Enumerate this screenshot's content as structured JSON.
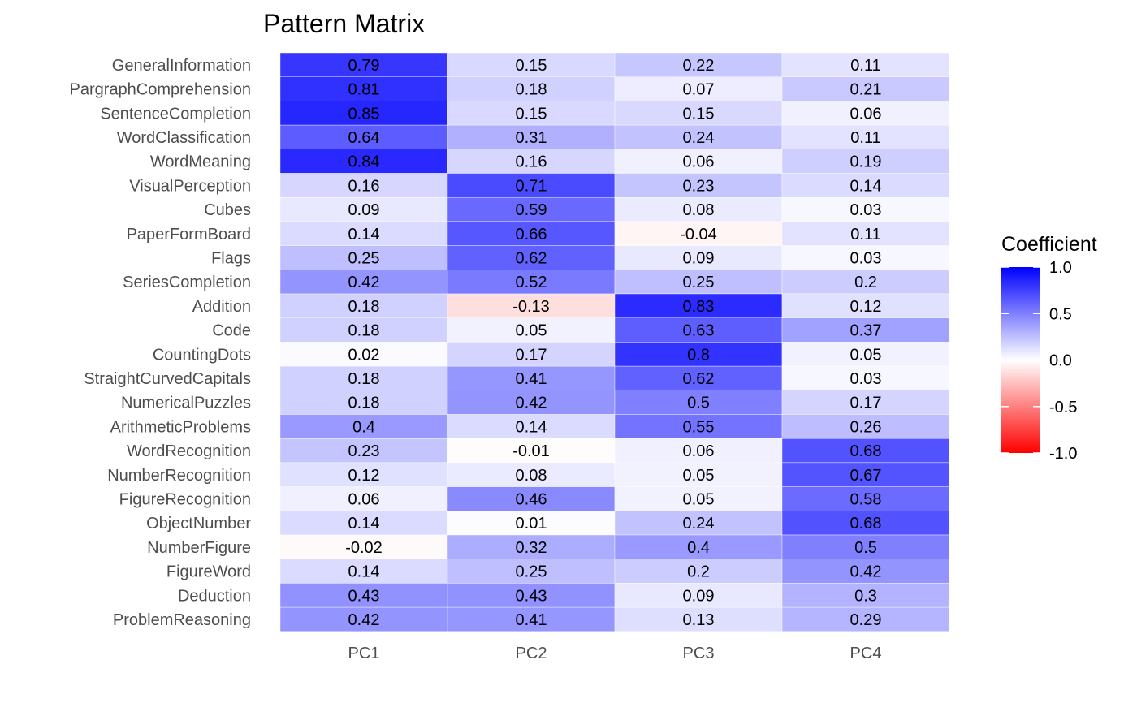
{
  "chart_data": {
    "type": "heatmap",
    "title": "Pattern Matrix",
    "xlabel": "",
    "ylabel": "",
    "columns": [
      "PC1",
      "PC2",
      "PC3",
      "PC4"
    ],
    "rows": [
      "GeneralInformation",
      "PargraphComprehension",
      "SentenceCompletion",
      "WordClassification",
      "WordMeaning",
      "VisualPerception",
      "Cubes",
      "PaperFormBoard",
      "Flags",
      "SeriesCompletion",
      "Addition",
      "Code",
      "CountingDots",
      "StraightCurvedCapitals",
      "NumericalPuzzles",
      "ArithmeticProblems",
      "WordRecognition",
      "NumberRecognition",
      "FigureRecognition",
      "ObjectNumber",
      "NumberFigure",
      "FigureWord",
      "Deduction",
      "ProblemReasoning"
    ],
    "values": [
      [
        0.79,
        0.15,
        0.22,
        0.11
      ],
      [
        0.81,
        0.18,
        0.07,
        0.21
      ],
      [
        0.85,
        0.15,
        0.15,
        0.06
      ],
      [
        0.64,
        0.31,
        0.24,
        0.11
      ],
      [
        0.84,
        0.16,
        0.06,
        0.19
      ],
      [
        0.16,
        0.71,
        0.23,
        0.14
      ],
      [
        0.09,
        0.59,
        0.08,
        0.03
      ],
      [
        0.14,
        0.66,
        -0.04,
        0.11
      ],
      [
        0.25,
        0.62,
        0.09,
        0.03
      ],
      [
        0.42,
        0.52,
        0.25,
        0.2
      ],
      [
        0.18,
        -0.13,
        0.83,
        0.12
      ],
      [
        0.18,
        0.05,
        0.63,
        0.37
      ],
      [
        0.02,
        0.17,
        0.8,
        0.05
      ],
      [
        0.18,
        0.41,
        0.62,
        0.03
      ],
      [
        0.18,
        0.42,
        0.5,
        0.17
      ],
      [
        0.4,
        0.14,
        0.55,
        0.26
      ],
      [
        0.23,
        -0.01,
        0.06,
        0.68
      ],
      [
        0.12,
        0.08,
        0.05,
        0.67
      ],
      [
        0.06,
        0.46,
        0.05,
        0.58
      ],
      [
        0.14,
        0.01,
        0.24,
        0.68
      ],
      [
        -0.02,
        0.32,
        0.4,
        0.5
      ],
      [
        0.14,
        0.25,
        0.2,
        0.42
      ],
      [
        0.43,
        0.43,
        0.09,
        0.3
      ],
      [
        0.42,
        0.41,
        0.13,
        0.29
      ]
    ],
    "legend": {
      "title": "Coefficient",
      "placement": "right",
      "range": [
        -1,
        1
      ],
      "ticks": [
        "1.0",
        "0.5",
        "0.0",
        "-0.5",
        "-1.0"
      ],
      "tick_values": [
        1,
        0.5,
        0,
        -0.5,
        -1
      ],
      "low_color": "#ff0000",
      "mid_color": "#ffffff",
      "high_color": "#0000ff"
    }
  }
}
